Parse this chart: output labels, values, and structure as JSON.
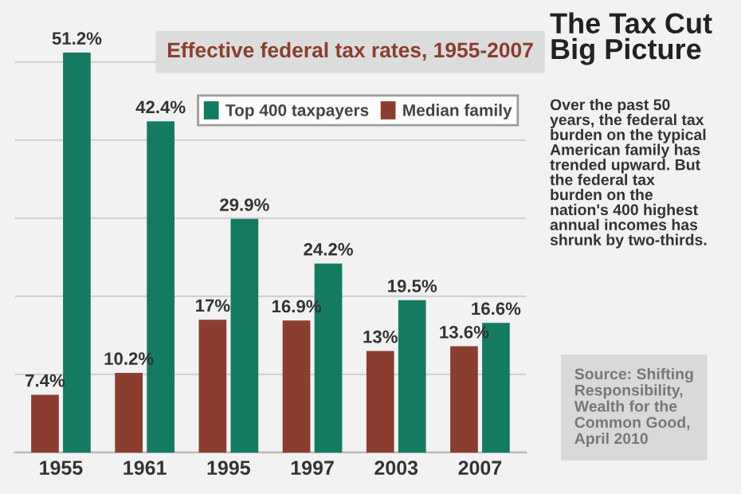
{
  "chart_data": {
    "type": "bar",
    "title": "Effective federal tax rates, 1955-2007",
    "subtitle": "The Tax Cut\nBig Picture",
    "annotations": [
      "Over the past 50\nyears, the federal tax\nburden on the typical\nAmerican family has\ntrended upward. But\nthe federal tax\nburden on the\nnation's 400 highest\nannual incomes has\nshrunk by two-thirds.",
      "Source: Shifting\nResponsibility,\nWealth for the\nCommon Good,\nApril 2010"
    ],
    "categories": [
      "1955",
      "1961",
      "1995",
      "1997",
      "2003",
      "2007"
    ],
    "series": [
      {
        "name": "Median family",
        "color": "#8b3e2f",
        "values": [
          7.4,
          10.2,
          17,
          16.9,
          13,
          13.6
        ],
        "value_labels": [
          "7.4%",
          "10.2%",
          "17%",
          "16.9%",
          "13%",
          "13.6%"
        ]
      },
      {
        "name": "Top 400 taxpayers",
        "color": "#157a62",
        "values": [
          51.2,
          42.4,
          29.9,
          24.2,
          19.5,
          16.6
        ],
        "value_labels": [
          "51.2%",
          "42.4%",
          "29.9%",
          "24.2%",
          "19.5%",
          "16.6%"
        ]
      }
    ],
    "tick_labels": "x",
    "grid": "y",
    "legend": "top right"
  }
}
